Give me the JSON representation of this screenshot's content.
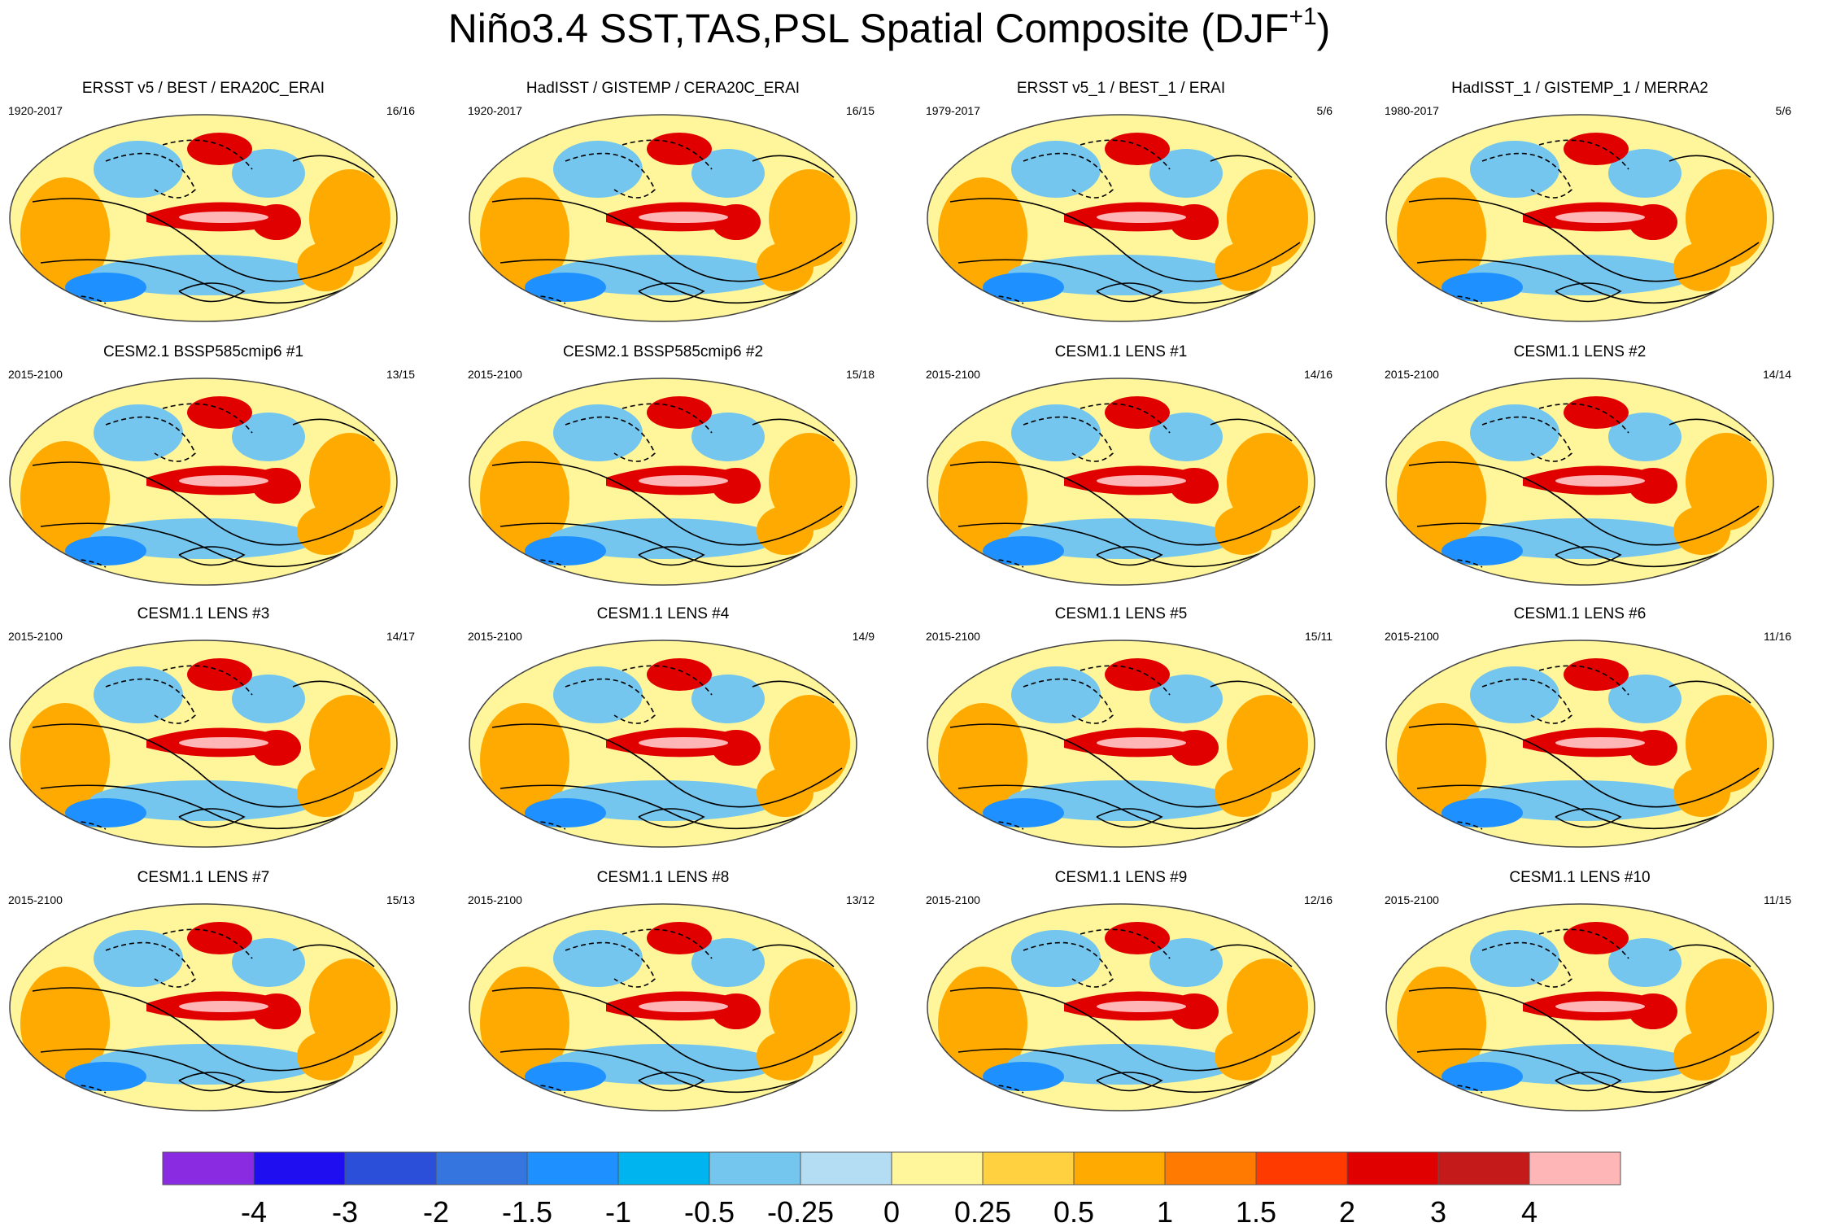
{
  "title": "Niño3.4 SST,TAS,PSL Spatial Composite (DJF",
  "title_superscript": "+1",
  "title_close": ")",
  "panels": [
    {
      "title": "ERSST v5 / BEST / ERA20C_ERAI",
      "period": "1920-2017",
      "count": "16/16"
    },
    {
      "title": "HadISST / GISTEMP / CERA20C_ERAI",
      "period": "1920-2017",
      "count": "16/15"
    },
    {
      "title": "ERSST v5_1 / BEST_1 / ERAI",
      "period": "1979-2017",
      "count": "5/6"
    },
    {
      "title": "HadISST_1 / GISTEMP_1 / MERRA2",
      "period": "1980-2017",
      "count": "5/6"
    },
    {
      "title": "CESM2.1 BSSP585cmip6 #1",
      "period": "2015-2100",
      "count": "13/15"
    },
    {
      "title": "CESM2.1 BSSP585cmip6 #2",
      "period": "2015-2100",
      "count": "15/18"
    },
    {
      "title": "CESM1.1 LENS #1",
      "period": "2015-2100",
      "count": "14/16"
    },
    {
      "title": "CESM1.1 LENS #2",
      "period": "2015-2100",
      "count": "14/14"
    },
    {
      "title": "CESM1.1 LENS #3",
      "period": "2015-2100",
      "count": "14/17"
    },
    {
      "title": "CESM1.1 LENS #4",
      "period": "2015-2100",
      "count": "14/9"
    },
    {
      "title": "CESM1.1 LENS #5",
      "period": "2015-2100",
      "count": "15/11"
    },
    {
      "title": "CESM1.1 LENS #6",
      "period": "2015-2100",
      "count": "11/16"
    },
    {
      "title": "CESM1.1 LENS #7",
      "period": "2015-2100",
      "count": "15/13"
    },
    {
      "title": "CESM1.1 LENS #8",
      "period": "2015-2100",
      "count": "13/12"
    },
    {
      "title": "CESM1.1 LENS #9",
      "period": "2015-2100",
      "count": "12/16"
    },
    {
      "title": "CESM1.1 LENS #10",
      "period": "2015-2100",
      "count": "11/15"
    }
  ],
  "chart_data": {
    "type": "heatmap",
    "title": "Niño3.4 SST,TAS,PSL Spatial Composite (DJF+1)",
    "colorbar": {
      "tick_labels": [
        "-4",
        "-3",
        "-2",
        "-1.5",
        "-1",
        "-0.5",
        "-0.25",
        "0",
        "0.25",
        "0.5",
        "1",
        "1.5",
        "2",
        "3",
        "4"
      ],
      "colors": [
        "#8a2be2",
        "#1e0ef0",
        "#2b4fd8",
        "#3475e0",
        "#1e90ff",
        "#00b4f0",
        "#74c6ee",
        "#b4dcf2",
        "#fff59a",
        "#ffd040",
        "#ffaa00",
        "#ff7a00",
        "#ff3a00",
        "#e10000",
        "#c41a1a",
        "#ffb6b6"
      ]
    }
  },
  "map_colors": {
    "land_bg": "#fff59a",
    "warm": "#ffaa00",
    "hot": "#e10000",
    "core": "#ffb6b6",
    "cool": "#74c6ee",
    "cold": "#1e90ff",
    "contour": "#000000"
  }
}
